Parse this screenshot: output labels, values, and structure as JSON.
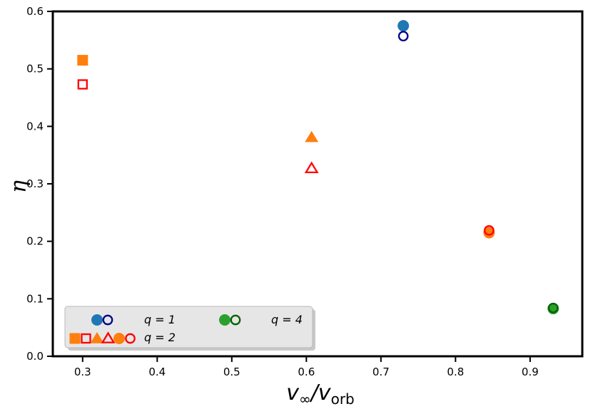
{
  "chart_data": {
    "type": "scatter",
    "xlabel": {
      "main": "v",
      "sub1": "∞",
      "slash": "/v",
      "sub2": "orb"
    },
    "ylabel": "η",
    "xlim": [
      0.26,
      0.97
    ],
    "ylim": [
      0.0,
      0.6
    ],
    "x_ticks": [
      0.3,
      0.4,
      0.5,
      0.6,
      0.7,
      0.8,
      0.9
    ],
    "y_ticks": [
      0.0,
      0.1,
      0.2,
      0.3,
      0.4,
      0.5,
      0.6
    ],
    "x_tick_labels": [
      "0.3",
      "0.4",
      "0.5",
      "0.6",
      "0.7",
      "0.8",
      "0.9"
    ],
    "y_tick_labels": [
      "0.0",
      "0.1",
      "0.2",
      "0.3",
      "0.4",
      "0.5",
      "0.6"
    ],
    "grid": false,
    "legend_placement": "lower-left",
    "series": [
      {
        "q": 1,
        "marker": "circle",
        "filled": true,
        "color": "#1f77b4",
        "points": [
          {
            "x": 0.73,
            "y": 0.575
          }
        ]
      },
      {
        "q": 1,
        "marker": "circle",
        "filled": false,
        "color": "#00008b",
        "points": [
          {
            "x": 0.73,
            "y": 0.557
          }
        ]
      },
      {
        "q": 2,
        "marker": "square",
        "filled": true,
        "color": "#ff7f0e",
        "points": [
          {
            "x": 0.3,
            "y": 0.515
          }
        ]
      },
      {
        "q": 2,
        "marker": "square",
        "filled": false,
        "color": "#ff0000",
        "points": [
          {
            "x": 0.3,
            "y": 0.473
          }
        ]
      },
      {
        "q": 2,
        "marker": "triangle",
        "filled": true,
        "color": "#ff7f0e",
        "points": [
          {
            "x": 0.607,
            "y": 0.381
          }
        ]
      },
      {
        "q": 2,
        "marker": "triangle",
        "filled": false,
        "color": "#ff0000",
        "points": [
          {
            "x": 0.607,
            "y": 0.327
          }
        ]
      },
      {
        "q": 2,
        "marker": "circle",
        "filled": true,
        "color": "#ff7f0e",
        "points": [
          {
            "x": 0.845,
            "y": 0.215
          }
        ]
      },
      {
        "q": 2,
        "marker": "circle",
        "filled": false,
        "color": "#ff0000",
        "points": [
          {
            "x": 0.845,
            "y": 0.219
          }
        ]
      },
      {
        "q": 4,
        "marker": "circle",
        "filled": true,
        "color": "#2ca02c",
        "points": [
          {
            "x": 0.931,
            "y": 0.083
          }
        ]
      },
      {
        "q": 4,
        "marker": "circle",
        "filled": false,
        "color": "#006400",
        "points": [
          {
            "x": 0.931,
            "y": 0.084
          }
        ]
      }
    ],
    "legend": [
      {
        "label": "q = 1",
        "markers": [
          {
            "marker": "circle",
            "filled": true,
            "color": "#1f77b4"
          },
          {
            "marker": "circle",
            "filled": false,
            "color": "#00008b"
          }
        ]
      },
      {
        "label": "q = 4",
        "markers": [
          {
            "marker": "circle",
            "filled": true,
            "color": "#2ca02c"
          },
          {
            "marker": "circle",
            "filled": false,
            "color": "#006400"
          }
        ]
      },
      {
        "label": "q = 2",
        "markers": [
          {
            "marker": "square",
            "filled": true,
            "color": "#ff7f0e"
          },
          {
            "marker": "square",
            "filled": false,
            "color": "#ff0000"
          },
          {
            "marker": "triangle",
            "filled": true,
            "color": "#ff7f0e"
          },
          {
            "marker": "triangle",
            "filled": false,
            "color": "#ff0000"
          },
          {
            "marker": "circle",
            "filled": true,
            "color": "#ff7f0e"
          },
          {
            "marker": "circle",
            "filled": false,
            "color": "#ff0000"
          }
        ]
      }
    ]
  }
}
